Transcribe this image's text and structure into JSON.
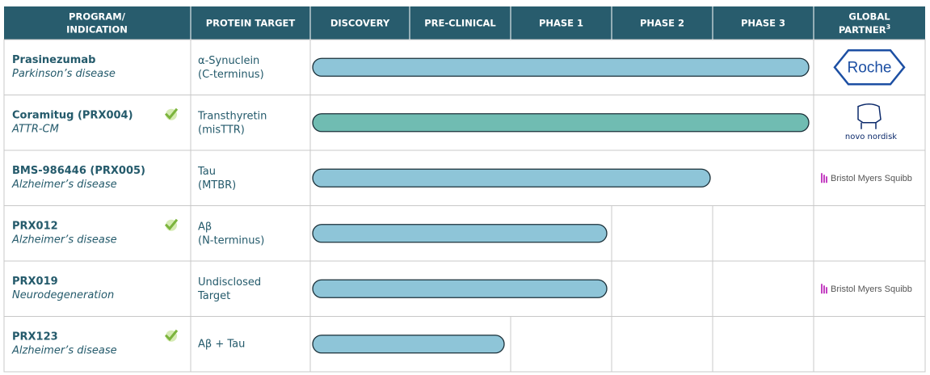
{
  "header": {
    "program": [
      "PROGRAM/",
      "INDICATION"
    ],
    "protein_target": "PROTEIN TARGET",
    "stages": [
      "DISCOVERY",
      "PRE-CLINICAL",
      "PHASE 1",
      "PHASE 2",
      "PHASE 3"
    ],
    "partner": [
      "GLOBAL",
      "PARTNER"
    ],
    "partner_note": "3"
  },
  "rows": [
    {
      "program": "Prasinezumab",
      "indication": "Parkinson’s disease",
      "target": [
        "α-Synuclein",
        "(C-terminus)"
      ],
      "partner": "Roche"
    },
    {
      "program": "Coramitug (PRX004)",
      "indication": "ATTR-CM",
      "target": [
        "Transthyretin",
        "(misTTR)"
      ],
      "partner": "novo nordisk"
    },
    {
      "program": "BMS-986446 (PRX005)",
      "indication": "Alzheimer’s disease",
      "target": [
        "Tau",
        "(MTBR)"
      ],
      "partner": "Bristol Myers Squibb"
    },
    {
      "program": "PRX012",
      "indication": "Alzheimer’s disease",
      "target": [
        "Aβ",
        "(N-terminus)"
      ]
    },
    {
      "program": "PRX019",
      "indication": "Neurodegeneration",
      "target": [
        "Undisclosed",
        "Target"
      ],
      "partner": "Bristol Myers Squibb"
    },
    {
      "program": "PRX123",
      "indication": "Alzheimer’s disease",
      "target": [
        "Aβ + Tau"
      ]
    }
  ]
}
